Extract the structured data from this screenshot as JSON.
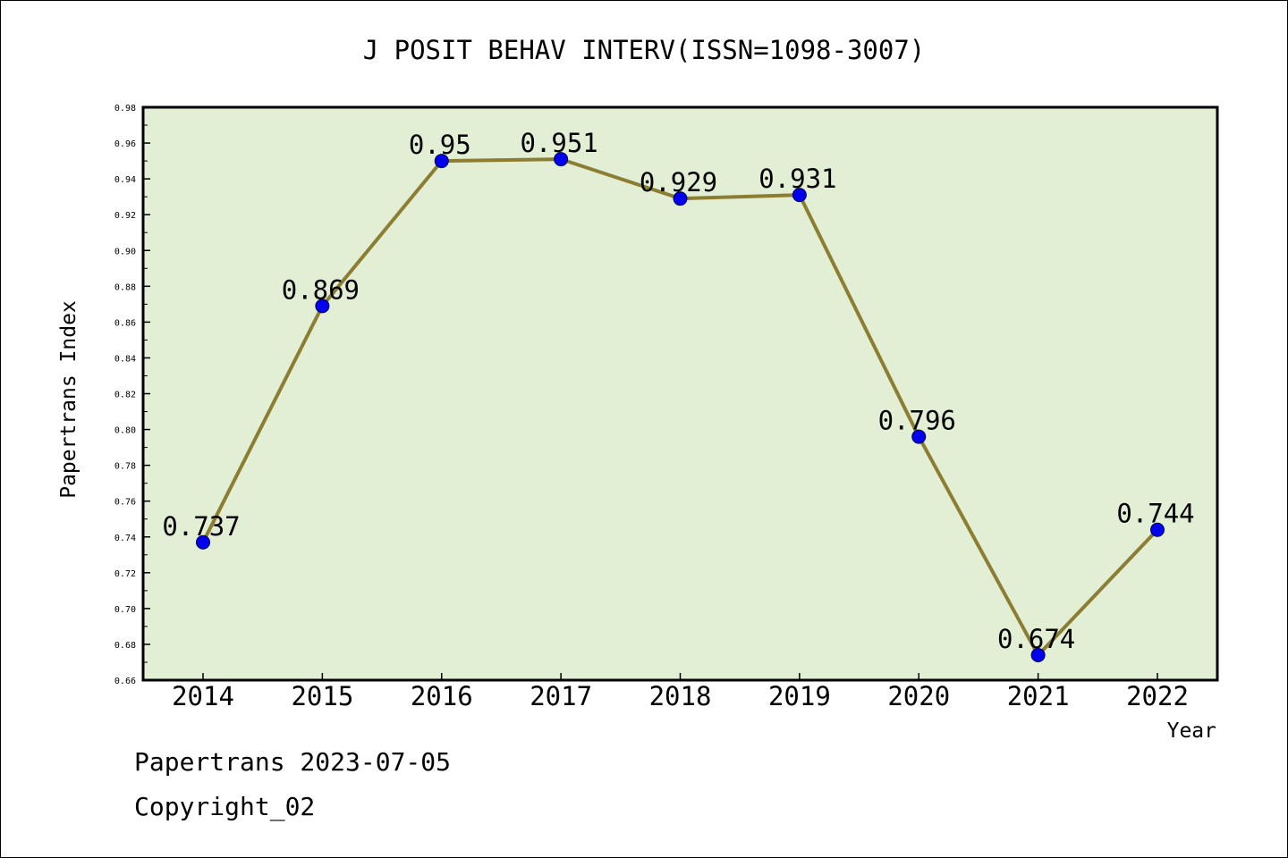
{
  "chart_data": {
    "type": "line",
    "title": "J POSIT BEHAV INTERV(ISSN=1098-3007)",
    "xlabel": "Year",
    "ylabel": "Papertrans Index",
    "categories": [
      "2014",
      "2015",
      "2016",
      "2017",
      "2018",
      "2019",
      "2020",
      "2021",
      "2022"
    ],
    "series": [
      {
        "values": [
          0.737,
          0.869,
          0.95,
          0.951,
          0.929,
          0.931,
          0.796,
          0.674,
          0.744
        ],
        "labels": [
          "0.737",
          "0.869",
          "0.95",
          "0.951",
          "0.929",
          "0.931",
          "0.796",
          "0.674",
          "0.744"
        ]
      }
    ],
    "ylim": [
      0.66,
      0.98
    ],
    "yticks": [
      "0.66",
      "0.68",
      "0.70",
      "0.72",
      "0.74",
      "0.76",
      "0.78",
      "0.80",
      "0.82",
      "0.84",
      "0.86",
      "0.88",
      "0.90",
      "0.92",
      "0.94",
      "0.96",
      "0.98"
    ],
    "grid": false,
    "legend": "none",
    "colors": {
      "plot_background": "#e2efd5",
      "line": "#8b7d32",
      "marker": "#0000ee",
      "marker_edge": "#00004a"
    }
  },
  "footer": {
    "source_line": "Papertrans 2023-07-05",
    "copyright_line": "Copyright_02"
  }
}
